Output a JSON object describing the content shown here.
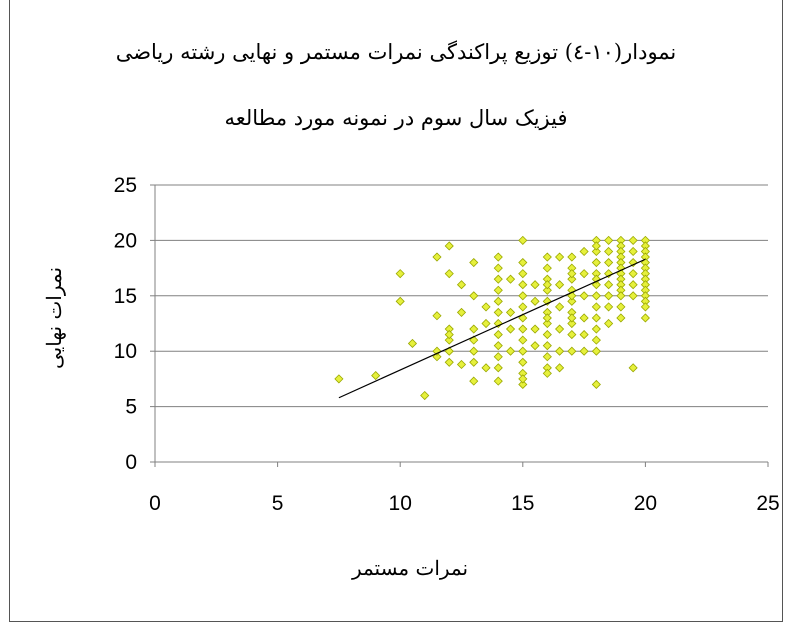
{
  "chart_data": {
    "type": "scatter",
    "title_line1": "نمودار(۱۰-٤) توزیع پراکندگی نمرات مستمر و نهایی رشته ریاضی",
    "title_line2": "فیزیک  سال سوم در نمونه مورد مطالعه",
    "xlabel": "نمرات مستمر",
    "ylabel": "نمرات نهایی",
    "xlim": [
      0,
      25
    ],
    "ylim": [
      0,
      25
    ],
    "xticks": [
      0,
      5,
      10,
      15,
      20,
      25
    ],
    "yticks": [
      0,
      5,
      10,
      15,
      20,
      25
    ],
    "grid": "horizontal",
    "marker_color": "#e6f03c",
    "marker_edge": "#9aa800",
    "trendline": {
      "x": [
        7.5,
        20
      ],
      "y": [
        5.8,
        18.3
      ]
    },
    "points": [
      [
        7.5,
        7.5
      ],
      [
        9,
        7.8
      ],
      [
        10,
        17
      ],
      [
        10,
        14.5
      ],
      [
        10.5,
        10.7
      ],
      [
        11,
        6
      ],
      [
        11.5,
        18.5
      ],
      [
        11.5,
        13.2
      ],
      [
        11.5,
        9.5
      ],
      [
        11.5,
        10
      ],
      [
        12,
        19.5
      ],
      [
        12,
        17
      ],
      [
        12,
        12
      ],
      [
        12,
        11
      ],
      [
        12,
        10
      ],
      [
        12,
        9
      ],
      [
        12,
        11.5
      ],
      [
        12.5,
        16
      ],
      [
        12.5,
        13.5
      ],
      [
        12.5,
        8.8
      ],
      [
        13,
        18
      ],
      [
        13,
        15
      ],
      [
        13,
        12
      ],
      [
        13,
        11
      ],
      [
        13,
        10
      ],
      [
        13,
        9
      ],
      [
        13,
        7.3
      ],
      [
        13.5,
        12.5
      ],
      [
        13.5,
        14
      ],
      [
        13.5,
        8.5
      ],
      [
        14,
        18.5
      ],
      [
        14,
        17.5
      ],
      [
        14,
        16.5
      ],
      [
        14,
        15.5
      ],
      [
        14,
        14.5
      ],
      [
        14,
        13.5
      ],
      [
        14,
        12.5
      ],
      [
        14,
        11.5
      ],
      [
        14,
        10.5
      ],
      [
        14,
        9.5
      ],
      [
        14,
        8.5
      ],
      [
        14,
        7.3
      ],
      [
        14.5,
        16.5
      ],
      [
        14.5,
        12
      ],
      [
        14.5,
        10
      ],
      [
        14.5,
        13.5
      ],
      [
        15,
        20
      ],
      [
        15,
        18
      ],
      [
        15,
        17
      ],
      [
        15,
        16
      ],
      [
        15,
        15
      ],
      [
        15,
        14
      ],
      [
        15,
        13
      ],
      [
        15,
        12
      ],
      [
        15,
        11
      ],
      [
        15,
        10
      ],
      [
        15,
        9
      ],
      [
        15,
        8
      ],
      [
        15,
        7
      ],
      [
        15,
        7.5
      ],
      [
        15.5,
        16
      ],
      [
        15.5,
        14.5
      ],
      [
        15.5,
        12
      ],
      [
        15.5,
        10.5
      ],
      [
        16,
        18.5
      ],
      [
        16,
        17.5
      ],
      [
        16,
        16.5
      ],
      [
        16,
        15.5
      ],
      [
        16,
        14.5
      ],
      [
        16,
        13.5
      ],
      [
        16,
        12.5
      ],
      [
        16,
        11.5
      ],
      [
        16,
        10.5
      ],
      [
        16,
        9.5
      ],
      [
        16,
        8.5
      ],
      [
        16,
        8
      ],
      [
        16,
        16
      ],
      [
        16,
        13
      ],
      [
        16.5,
        18.5
      ],
      [
        16.5,
        16
      ],
      [
        16.5,
        14
      ],
      [
        16.5,
        12
      ],
      [
        16.5,
        10
      ],
      [
        16.5,
        8.5
      ],
      [
        17,
        18.5
      ],
      [
        17,
        17.5
      ],
      [
        17,
        16.5
      ],
      [
        17,
        15.5
      ],
      [
        17,
        14.5
      ],
      [
        17,
        13.5
      ],
      [
        17,
        12.5
      ],
      [
        17,
        11.5
      ],
      [
        17,
        10
      ],
      [
        17,
        17
      ],
      [
        17,
        15
      ],
      [
        17,
        13
      ],
      [
        17.5,
        19
      ],
      [
        17.5,
        17
      ],
      [
        17.5,
        15
      ],
      [
        17.5,
        13
      ],
      [
        17.5,
        11.5
      ],
      [
        17.5,
        10
      ],
      [
        18,
        20
      ],
      [
        18,
        19
      ],
      [
        18,
        18
      ],
      [
        18,
        17
      ],
      [
        18,
        16
      ],
      [
        18,
        15
      ],
      [
        18,
        14
      ],
      [
        18,
        13
      ],
      [
        18,
        12
      ],
      [
        18,
        11
      ],
      [
        18,
        10
      ],
      [
        18,
        7
      ],
      [
        18,
        19.5
      ],
      [
        18,
        16.5
      ],
      [
        18.5,
        20
      ],
      [
        18.5,
        19
      ],
      [
        18.5,
        18
      ],
      [
        18.5,
        17
      ],
      [
        18.5,
        16
      ],
      [
        18.5,
        15
      ],
      [
        18.5,
        14
      ],
      [
        18.5,
        12.5
      ],
      [
        19,
        20
      ],
      [
        19,
        19.5
      ],
      [
        19,
        19
      ],
      [
        19,
        18.5
      ],
      [
        19,
        18
      ],
      [
        19,
        17.5
      ],
      [
        19,
        17
      ],
      [
        19,
        16.5
      ],
      [
        19,
        16
      ],
      [
        19,
        15.5
      ],
      [
        19,
        15
      ],
      [
        19,
        14
      ],
      [
        19,
        13
      ],
      [
        19.5,
        20
      ],
      [
        19.5,
        19
      ],
      [
        19.5,
        18
      ],
      [
        19.5,
        17
      ],
      [
        19.5,
        16
      ],
      [
        19.5,
        15
      ],
      [
        19.5,
        8.5
      ],
      [
        20,
        20
      ],
      [
        20,
        19.5
      ],
      [
        20,
        19
      ],
      [
        20,
        18.5
      ],
      [
        20,
        18
      ],
      [
        20,
        17.5
      ],
      [
        20,
        17
      ],
      [
        20,
        16.5
      ],
      [
        20,
        16
      ],
      [
        20,
        15.5
      ],
      [
        20,
        15
      ],
      [
        20,
        14.5
      ],
      [
        20,
        14
      ],
      [
        20,
        13
      ]
    ]
  }
}
